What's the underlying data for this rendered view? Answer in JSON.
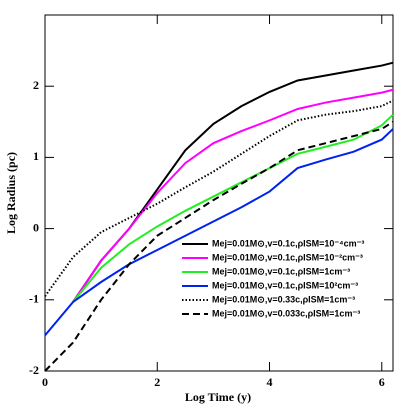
{
  "chart_data": {
    "type": "line",
    "x_label": "Log Time (y)",
    "y_label": "Log Radius (pc)",
    "x": [
      0,
      0.5,
      1,
      1.5,
      2,
      2.5,
      3,
      3.5,
      4,
      4.5,
      5,
      5.5,
      6,
      6.2
    ],
    "series": [
      {
        "name": "Mej=0.01M⊙,v=0.1c,ρISM=10⁻⁴cm⁻³",
        "color": "#000000",
        "dash": "solid",
        "values": [
          null,
          -1.03,
          -0.45,
          0.0,
          0.55,
          1.1,
          1.47,
          1.72,
          1.92,
          2.08,
          2.15,
          2.22,
          2.29,
          2.33
        ]
      },
      {
        "name": "Mej=0.01M⊙,v=0.1c,ρISM=10⁻²cm⁻³",
        "color": "#ff00ff",
        "dash": "solid",
        "values": [
          null,
          -1.03,
          -0.45,
          0.0,
          0.5,
          0.92,
          1.2,
          1.37,
          1.52,
          1.68,
          1.77,
          1.84,
          1.91,
          1.95
        ]
      },
      {
        "name": "Mej=0.01M⊙,v=0.1c,ρISM=1cm⁻³",
        "color": "#22ee22",
        "dash": "solid",
        "values": [
          null,
          -1.03,
          -0.55,
          -0.22,
          0.03,
          0.25,
          0.45,
          0.65,
          0.85,
          1.05,
          1.15,
          1.25,
          1.45,
          1.6
        ]
      },
      {
        "name": "Mej=0.01M⊙,v=0.1c,ρISM=10²cm⁻³",
        "color": "#0022ee",
        "dash": "solid",
        "values": [
          -1.5,
          -1.03,
          -0.75,
          -0.5,
          -0.3,
          -0.1,
          0.1,
          0.3,
          0.52,
          0.85,
          0.97,
          1.08,
          1.25,
          1.4
        ]
      },
      {
        "name": "Mej=0.01M⊙,v=0.33c,ρISM=1cm⁻³",
        "color": "#000000",
        "dash": "dotted",
        "values": [
          -0.95,
          -0.4,
          -0.05,
          0.15,
          0.35,
          0.58,
          0.8,
          1.05,
          1.3,
          1.52,
          1.6,
          1.65,
          1.72,
          1.8
        ]
      },
      {
        "name": "Mej=0.01M⊙,v=0.033c,ρISM=1cm⁻³",
        "color": "#000000",
        "dash": "dashed",
        "values": [
          -2,
          -1.6,
          -1.0,
          -0.5,
          -0.1,
          0.15,
          0.4,
          0.63,
          0.85,
          1.1,
          1.2,
          1.3,
          1.4,
          1.5
        ]
      }
    ],
    "xlim": [
      0,
      6.2
    ],
    "ylim": [
      -2,
      3
    ],
    "xticks": [
      0,
      2,
      4,
      6
    ],
    "yticks": [
      -2,
      -1,
      0,
      1,
      2
    ],
    "legend": "lower right"
  }
}
